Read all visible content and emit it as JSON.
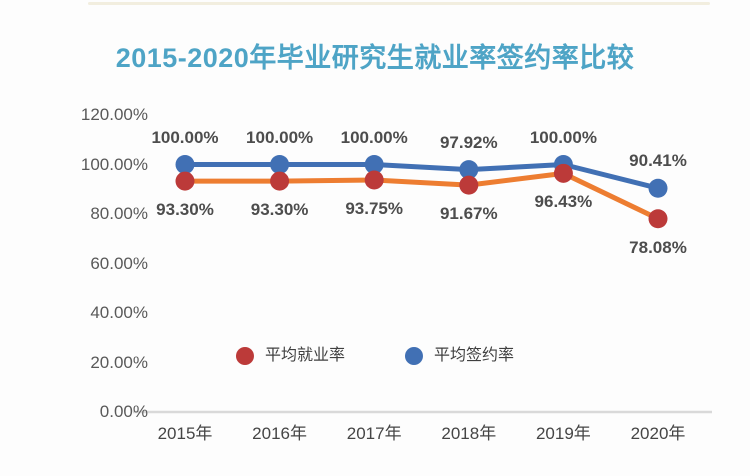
{
  "page": {
    "background": "#fdfdfd",
    "top_accent_color": "#f2eedf"
  },
  "chart_data": {
    "type": "line",
    "title": "2015-2020年毕业研究生就业率签约率比较",
    "title_color": "#4ea4c6",
    "categories": [
      "2015年",
      "2016年",
      "2017年",
      "2018年",
      "2019年",
      "2020年"
    ],
    "series": [
      {
        "name": "平均就业率",
        "line_color": "#ed7d31",
        "marker_color": "#bc3a39",
        "values": [
          93.3,
          93.3,
          93.75,
          91.67,
          96.43,
          78.08
        ],
        "labels": [
          "93.30%",
          "93.30%",
          "93.75%",
          "91.67%",
          "96.43%",
          "78.08%"
        ],
        "label_position": "below"
      },
      {
        "name": "平均签约率",
        "line_color": "#4170b4",
        "marker_color": "#4170b4",
        "values": [
          100.0,
          100.0,
          100.0,
          97.92,
          100.0,
          90.41
        ],
        "labels": [
          "100.00%",
          "100.00%",
          "100.00%",
          "97.92%",
          "100.00%",
          "90.41%"
        ],
        "label_position": "above"
      }
    ],
    "y_axis": {
      "min": 0,
      "max": 120,
      "step": 20,
      "tick_labels": [
        "0.00%",
        "20.00%",
        "40.00%",
        "60.00%",
        "80.00%",
        "100.00%",
        "120.00%"
      ]
    },
    "x_axis_line_color": "#d9d9d9",
    "gridlines": false,
    "legend_position": "inside-bottom",
    "legend": [
      {
        "name": "平均就业率",
        "color": "#bc3a39"
      },
      {
        "name": "平均签约率",
        "color": "#4170b4"
      }
    ]
  }
}
